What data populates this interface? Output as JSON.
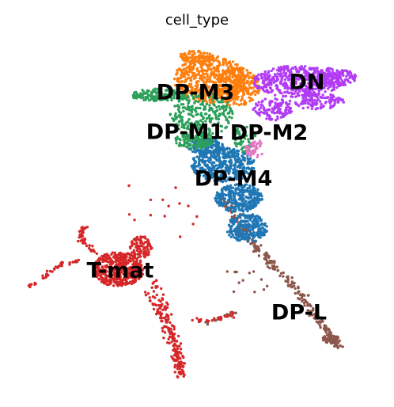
{
  "chart_data": {
    "type": "scatter",
    "title": "cell_type",
    "xlabel": "",
    "ylabel": "",
    "axes_visible": false,
    "grid": false,
    "legend": "on data",
    "clusters": [
      {
        "name": "DP-M3",
        "color": "#ff7f0e"
      },
      {
        "name": "DN",
        "color": "#b23cf5"
      },
      {
        "name": "DP-M1",
        "color": "#2ca05a"
      },
      {
        "name": "DP-M2",
        "color": "#e377c2"
      },
      {
        "name": "DP-M4",
        "color": "#1f77b4"
      },
      {
        "name": "T-mat",
        "color": "#d62728"
      },
      {
        "name": "DP-L",
        "color": "#8c564b"
      }
    ]
  }
}
